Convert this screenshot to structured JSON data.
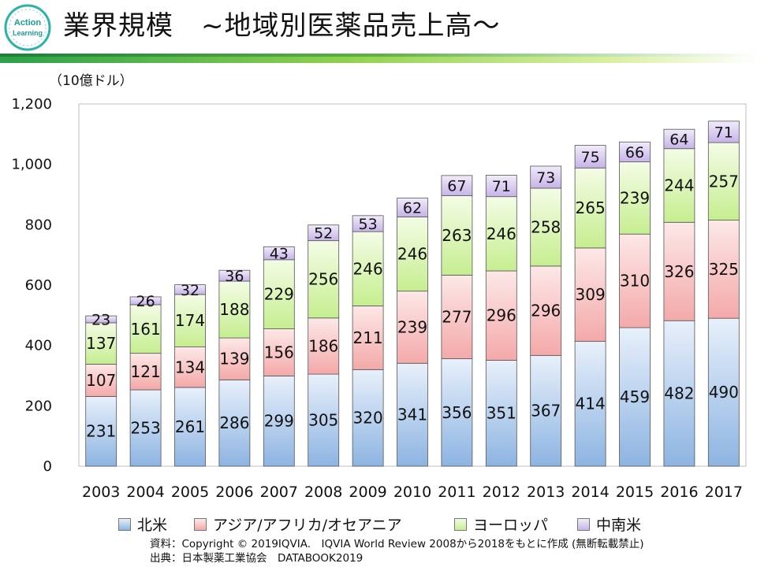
{
  "header": {
    "title": "業界規模　~地域別医薬品売上高～",
    "logo_text_1": "Action",
    "logo_text_2": "Learning"
  },
  "chart_data": {
    "type": "bar",
    "stacked": true,
    "unit_label": "（10億ドル）",
    "categories": [
      "2003",
      "2004",
      "2005",
      "2006",
      "2007",
      "2008",
      "2009",
      "2010",
      "2011",
      "2012",
      "2013",
      "2014",
      "2015",
      "2016",
      "2017"
    ],
    "ylim": [
      0,
      1200
    ],
    "yticks": [
      0,
      200,
      400,
      600,
      800,
      1000,
      1200
    ],
    "ytick_labels": [
      "0",
      "200",
      "400",
      "600",
      "800",
      "1,000",
      "1,200"
    ],
    "grid": false,
    "legend_position": "bottom",
    "series": [
      {
        "name": "北米",
        "color_top": "#8db4e2",
        "color_bottom": "#e8f0fb",
        "values": [
          231,
          253,
          261,
          286,
          299,
          305,
          320,
          341,
          356,
          351,
          367,
          414,
          459,
          482,
          490
        ]
      },
      {
        "name": "アジア/アフリカ/オセアニア",
        "color_top": "#f4a9a9",
        "color_bottom": "#fde8e8",
        "values": [
          107,
          121,
          134,
          139,
          156,
          186,
          211,
          239,
          277,
          296,
          296,
          309,
          310,
          326,
          325
        ]
      },
      {
        "name": "ヨーロッパ",
        "color_top": "#c6ee90",
        "color_bottom": "#f4fce6",
        "values": [
          137,
          161,
          174,
          188,
          229,
          256,
          246,
          246,
          263,
          246,
          258,
          265,
          239,
          244,
          257
        ]
      },
      {
        "name": "中南米",
        "color_top": "#c6b3e8",
        "color_bottom": "#f1ecfa",
        "values": [
          23,
          26,
          32,
          36,
          43,
          52,
          53,
          62,
          67,
          71,
          73,
          75,
          66,
          64,
          71
        ]
      }
    ]
  },
  "legend": {
    "items": [
      "北米",
      "アジア/アフリカ/オセアニア",
      "ヨーロッパ",
      "中南米"
    ]
  },
  "source": {
    "line1": "資料：Copyright © 2019IQVIA.　IQVIA World Review 2008から2018をもとに作成 (無断転載禁止)",
    "line2": "出典：日本製薬工業協会　DATABOOK2019"
  }
}
